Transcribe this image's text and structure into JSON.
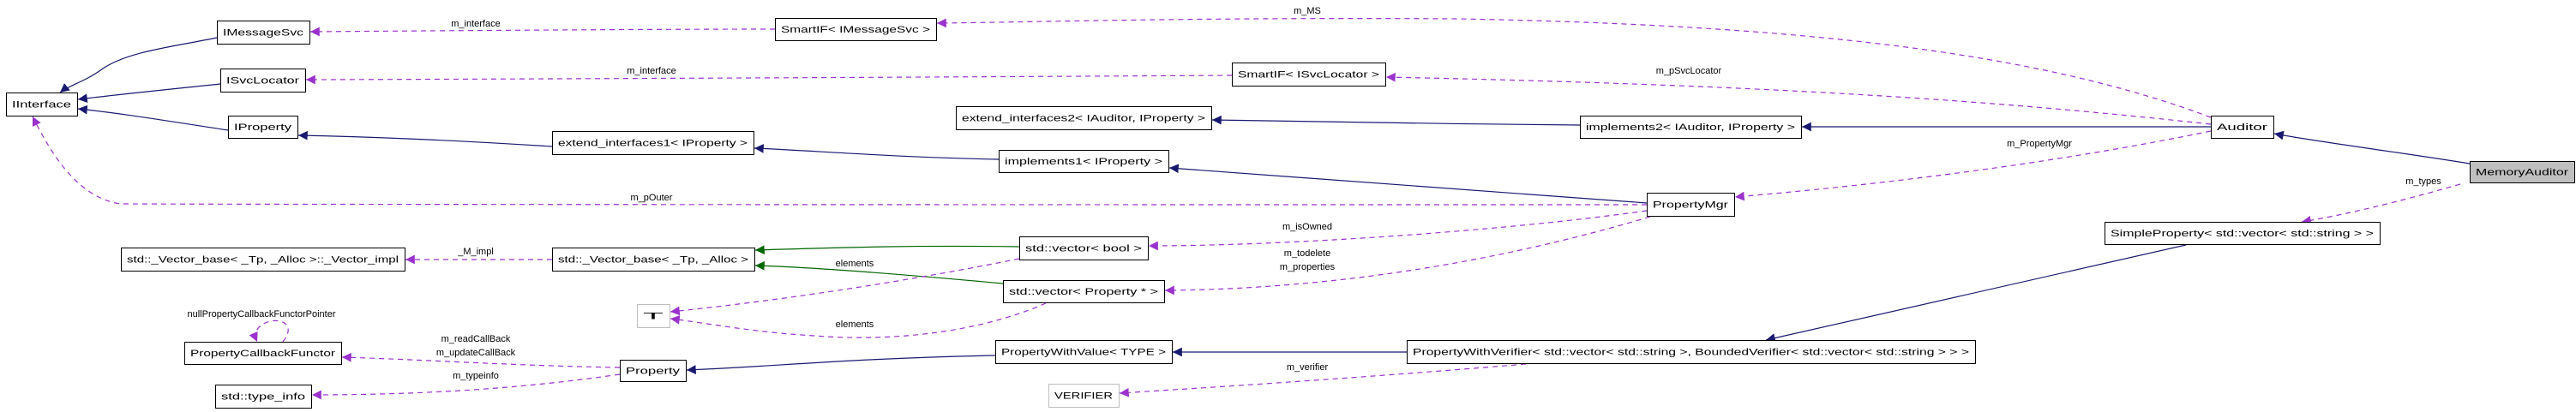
{
  "diagram": {
    "nodes": [
      {
        "label": "IInterface"
      },
      {
        "label": "IMessageSvc"
      },
      {
        "label": "ISvcLocator"
      },
      {
        "label": "IProperty"
      },
      {
        "label": "SmartIF< IMessageSvc >"
      },
      {
        "label": "SmartIF< ISvcLocator >"
      },
      {
        "label": "extend_interfaces1< IProperty >"
      },
      {
        "label": "extend_interfaces2< IAuditor, IProperty >"
      },
      {
        "label": "implements2< IAuditor, IProperty >"
      },
      {
        "label": "implements1< IProperty >"
      },
      {
        "label": "Auditor"
      },
      {
        "label": "MemoryAuditor"
      },
      {
        "label": "PropertyMgr"
      },
      {
        "label": "std::_Vector_base< _Tp, _Alloc >::_Vector_impl"
      },
      {
        "label": "std::_Vector_base< _Tp, _Alloc >"
      },
      {
        "label": "std::vector< bool >"
      },
      {
        "label": "std::vector< Property * >"
      },
      {
        "label": "T"
      },
      {
        "label": "PropertyCallbackFunctor"
      },
      {
        "label": "std::type_info"
      },
      {
        "label": "Property"
      },
      {
        "label": "PropertyWithValue< TYPE >"
      },
      {
        "label": "PropertyWithVerifier< std::vector< std::string >, BoundedVerifier< std::vector< std::string > > >"
      },
      {
        "label": "SimpleProperty< std::vector< std::string > >"
      },
      {
        "label": "VERIFIER"
      }
    ],
    "edge_labels": [
      "m_interface",
      "m_interface",
      "m_MS",
      "m_pSvcLocator",
      "m_PropertyMgr",
      "m_pOuter",
      "m_isOwned",
      "m_todelete",
      "m_properties",
      "_M_impl",
      "elements",
      "elements",
      "nullPropertyCallbackFunctorPointer",
      "m_readCallBack",
      "m_updateCallBack",
      "m_typeinfo",
      "m_verifier",
      "m_types"
    ]
  },
  "colors": {
    "public_inheritance": "#191970",
    "protected_inheritance": "#006400",
    "usage": "#9a32cd",
    "focus_fill": "#bfbfbf",
    "undocumented_border": "#bfbfbf"
  }
}
